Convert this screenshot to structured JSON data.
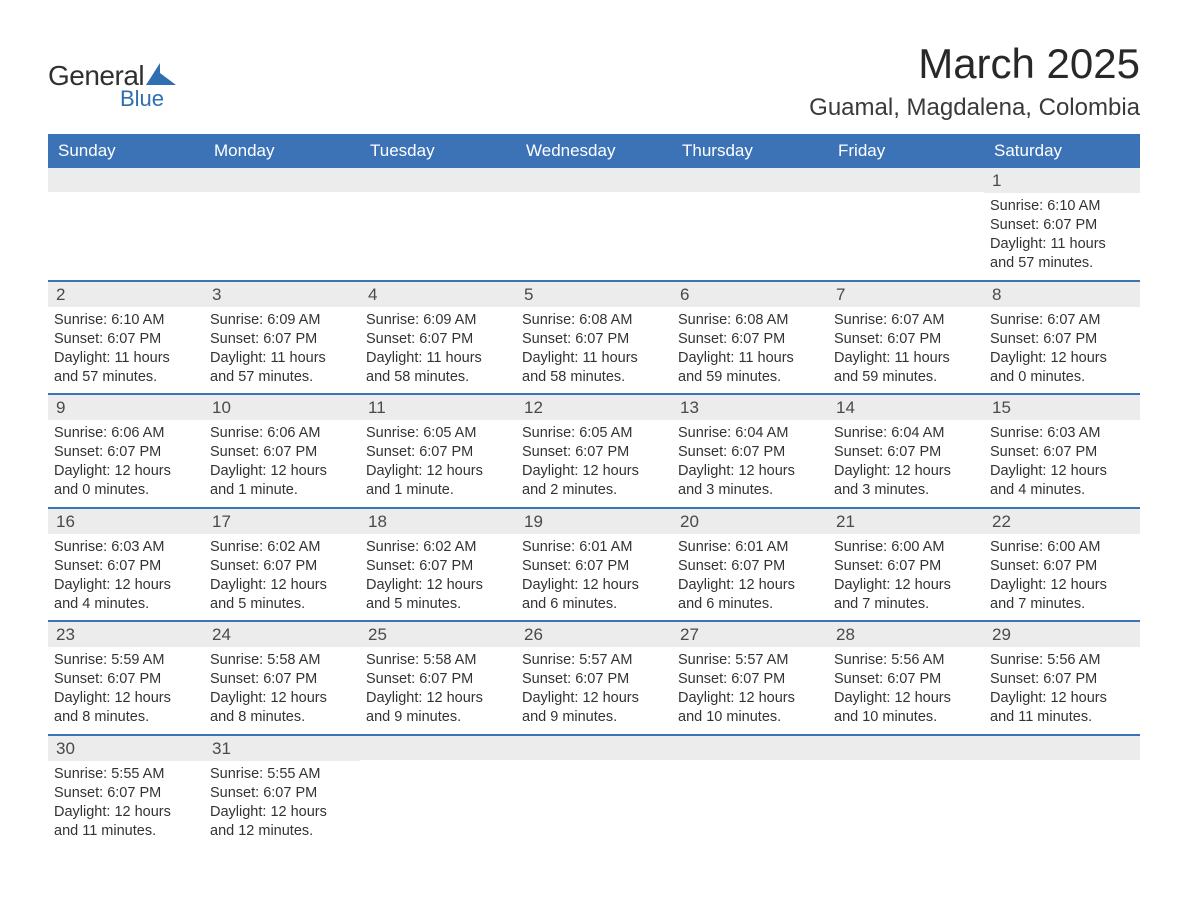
{
  "logo": {
    "text1": "General",
    "text2": "Blue",
    "shape_color": "#2f6eb0"
  },
  "title": "March 2025",
  "location": "Guamal, Magdalena, Colombia",
  "colors": {
    "header_bg": "#3b73b6",
    "header_text": "#ffffff",
    "daynum_bg": "#ececec",
    "row_border": "#3b73b6",
    "body_text": "#333333"
  },
  "weekdays": [
    "Sunday",
    "Monday",
    "Tuesday",
    "Wednesday",
    "Thursday",
    "Friday",
    "Saturday"
  ],
  "weeks": [
    [
      {
        "n": "",
        "sr": "",
        "ss": "",
        "dl": ""
      },
      {
        "n": "",
        "sr": "",
        "ss": "",
        "dl": ""
      },
      {
        "n": "",
        "sr": "",
        "ss": "",
        "dl": ""
      },
      {
        "n": "",
        "sr": "",
        "ss": "",
        "dl": ""
      },
      {
        "n": "",
        "sr": "",
        "ss": "",
        "dl": ""
      },
      {
        "n": "",
        "sr": "",
        "ss": "",
        "dl": ""
      },
      {
        "n": "1",
        "sr": "Sunrise: 6:10 AM",
        "ss": "Sunset: 6:07 PM",
        "dl": "Daylight: 11 hours and 57 minutes."
      }
    ],
    [
      {
        "n": "2",
        "sr": "Sunrise: 6:10 AM",
        "ss": "Sunset: 6:07 PM",
        "dl": "Daylight: 11 hours and 57 minutes."
      },
      {
        "n": "3",
        "sr": "Sunrise: 6:09 AM",
        "ss": "Sunset: 6:07 PM",
        "dl": "Daylight: 11 hours and 57 minutes."
      },
      {
        "n": "4",
        "sr": "Sunrise: 6:09 AM",
        "ss": "Sunset: 6:07 PM",
        "dl": "Daylight: 11 hours and 58 minutes."
      },
      {
        "n": "5",
        "sr": "Sunrise: 6:08 AM",
        "ss": "Sunset: 6:07 PM",
        "dl": "Daylight: 11 hours and 58 minutes."
      },
      {
        "n": "6",
        "sr": "Sunrise: 6:08 AM",
        "ss": "Sunset: 6:07 PM",
        "dl": "Daylight: 11 hours and 59 minutes."
      },
      {
        "n": "7",
        "sr": "Sunrise: 6:07 AM",
        "ss": "Sunset: 6:07 PM",
        "dl": "Daylight: 11 hours and 59 minutes."
      },
      {
        "n": "8",
        "sr": "Sunrise: 6:07 AM",
        "ss": "Sunset: 6:07 PM",
        "dl": "Daylight: 12 hours and 0 minutes."
      }
    ],
    [
      {
        "n": "9",
        "sr": "Sunrise: 6:06 AM",
        "ss": "Sunset: 6:07 PM",
        "dl": "Daylight: 12 hours and 0 minutes."
      },
      {
        "n": "10",
        "sr": "Sunrise: 6:06 AM",
        "ss": "Sunset: 6:07 PM",
        "dl": "Daylight: 12 hours and 1 minute."
      },
      {
        "n": "11",
        "sr": "Sunrise: 6:05 AM",
        "ss": "Sunset: 6:07 PM",
        "dl": "Daylight: 12 hours and 1 minute."
      },
      {
        "n": "12",
        "sr": "Sunrise: 6:05 AM",
        "ss": "Sunset: 6:07 PM",
        "dl": "Daylight: 12 hours and 2 minutes."
      },
      {
        "n": "13",
        "sr": "Sunrise: 6:04 AM",
        "ss": "Sunset: 6:07 PM",
        "dl": "Daylight: 12 hours and 3 minutes."
      },
      {
        "n": "14",
        "sr": "Sunrise: 6:04 AM",
        "ss": "Sunset: 6:07 PM",
        "dl": "Daylight: 12 hours and 3 minutes."
      },
      {
        "n": "15",
        "sr": "Sunrise: 6:03 AM",
        "ss": "Sunset: 6:07 PM",
        "dl": "Daylight: 12 hours and 4 minutes."
      }
    ],
    [
      {
        "n": "16",
        "sr": "Sunrise: 6:03 AM",
        "ss": "Sunset: 6:07 PM",
        "dl": "Daylight: 12 hours and 4 minutes."
      },
      {
        "n": "17",
        "sr": "Sunrise: 6:02 AM",
        "ss": "Sunset: 6:07 PM",
        "dl": "Daylight: 12 hours and 5 minutes."
      },
      {
        "n": "18",
        "sr": "Sunrise: 6:02 AM",
        "ss": "Sunset: 6:07 PM",
        "dl": "Daylight: 12 hours and 5 minutes."
      },
      {
        "n": "19",
        "sr": "Sunrise: 6:01 AM",
        "ss": "Sunset: 6:07 PM",
        "dl": "Daylight: 12 hours and 6 minutes."
      },
      {
        "n": "20",
        "sr": "Sunrise: 6:01 AM",
        "ss": "Sunset: 6:07 PM",
        "dl": "Daylight: 12 hours and 6 minutes."
      },
      {
        "n": "21",
        "sr": "Sunrise: 6:00 AM",
        "ss": "Sunset: 6:07 PM",
        "dl": "Daylight: 12 hours and 7 minutes."
      },
      {
        "n": "22",
        "sr": "Sunrise: 6:00 AM",
        "ss": "Sunset: 6:07 PM",
        "dl": "Daylight: 12 hours and 7 minutes."
      }
    ],
    [
      {
        "n": "23",
        "sr": "Sunrise: 5:59 AM",
        "ss": "Sunset: 6:07 PM",
        "dl": "Daylight: 12 hours and 8 minutes."
      },
      {
        "n": "24",
        "sr": "Sunrise: 5:58 AM",
        "ss": "Sunset: 6:07 PM",
        "dl": "Daylight: 12 hours and 8 minutes."
      },
      {
        "n": "25",
        "sr": "Sunrise: 5:58 AM",
        "ss": "Sunset: 6:07 PM",
        "dl": "Daylight: 12 hours and 9 minutes."
      },
      {
        "n": "26",
        "sr": "Sunrise: 5:57 AM",
        "ss": "Sunset: 6:07 PM",
        "dl": "Daylight: 12 hours and 9 minutes."
      },
      {
        "n": "27",
        "sr": "Sunrise: 5:57 AM",
        "ss": "Sunset: 6:07 PM",
        "dl": "Daylight: 12 hours and 10 minutes."
      },
      {
        "n": "28",
        "sr": "Sunrise: 5:56 AM",
        "ss": "Sunset: 6:07 PM",
        "dl": "Daylight: 12 hours and 10 minutes."
      },
      {
        "n": "29",
        "sr": "Sunrise: 5:56 AM",
        "ss": "Sunset: 6:07 PM",
        "dl": "Daylight: 12 hours and 11 minutes."
      }
    ],
    [
      {
        "n": "30",
        "sr": "Sunrise: 5:55 AM",
        "ss": "Sunset: 6:07 PM",
        "dl": "Daylight: 12 hours and 11 minutes."
      },
      {
        "n": "31",
        "sr": "Sunrise: 5:55 AM",
        "ss": "Sunset: 6:07 PM",
        "dl": "Daylight: 12 hours and 12 minutes."
      },
      {
        "n": "",
        "sr": "",
        "ss": "",
        "dl": ""
      },
      {
        "n": "",
        "sr": "",
        "ss": "",
        "dl": ""
      },
      {
        "n": "",
        "sr": "",
        "ss": "",
        "dl": ""
      },
      {
        "n": "",
        "sr": "",
        "ss": "",
        "dl": ""
      },
      {
        "n": "",
        "sr": "",
        "ss": "",
        "dl": ""
      }
    ]
  ]
}
